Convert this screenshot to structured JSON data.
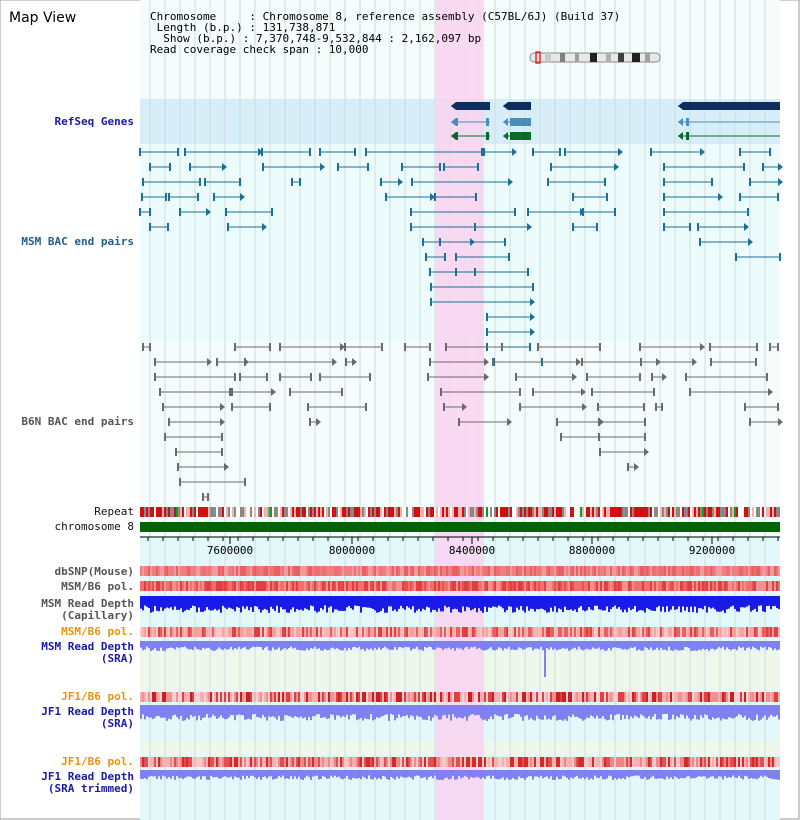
{
  "header": {
    "title": "Map View",
    "info_lines": [
      "Chromosome     : Chromosome 8, reference assembly (C57BL/6J) (Build 37)",
      " Length (b.p.) : 131,738,871",
      "  Show (b.p.) : 7,370,748-9,532,844 : 2,162,097 bp",
      "Read coverage check span : 10,000"
    ]
  },
  "tracks": {
    "refseq": "RefSeq Genes",
    "msm_bac": "MSM BAC end pairs",
    "b6n_bac": "B6N BAC end pairs",
    "repeat": "Repeat",
    "chromosome": "chromosome 8",
    "dbsnp": "dbSNP(Mouse)",
    "msm_pol": "MSM/B6 pol.",
    "msm_depth_cap_1": "MSM Read Depth",
    "msm_depth_cap_2": "(Capillary)",
    "msm_pol_sra": "MSM/B6 pol.",
    "msm_depth_sra_1": "MSM Read Depth",
    "msm_depth_sra_2": "(SRA)",
    "jf1_pol": "JF1/B6 pol.",
    "jf1_depth_1": "JF1 Read Depth",
    "jf1_depth_2": "(SRA)",
    "jf1_pol_trim": "JF1/B6 pol.",
    "jf1_trim_1": "JF1 Read Depth",
    "jf1_trim_2": "(SRA trimmed)"
  },
  "axis": {
    "ticks": [
      "7600000",
      "8000000",
      "8400000",
      "8800000",
      "9200000"
    ]
  },
  "colors": {
    "highlight": "#f9d4f0",
    "panel_light": "#ecfcfc",
    "refseq_band": "#d7eef8",
    "gene_dark": "#0d2d5e",
    "gene_mid": "#4a8fb8",
    "gene_green": "#0a6a2a",
    "bac_teal": "#1c6f95",
    "bac_gray": "#6a6a6a",
    "chromosome": "#006400",
    "depth_blue": "#1a1ae8",
    "depth_light": "#8080f0",
    "label_blue": "#1a1aa6",
    "label_orange": "#e8930c"
  }
}
